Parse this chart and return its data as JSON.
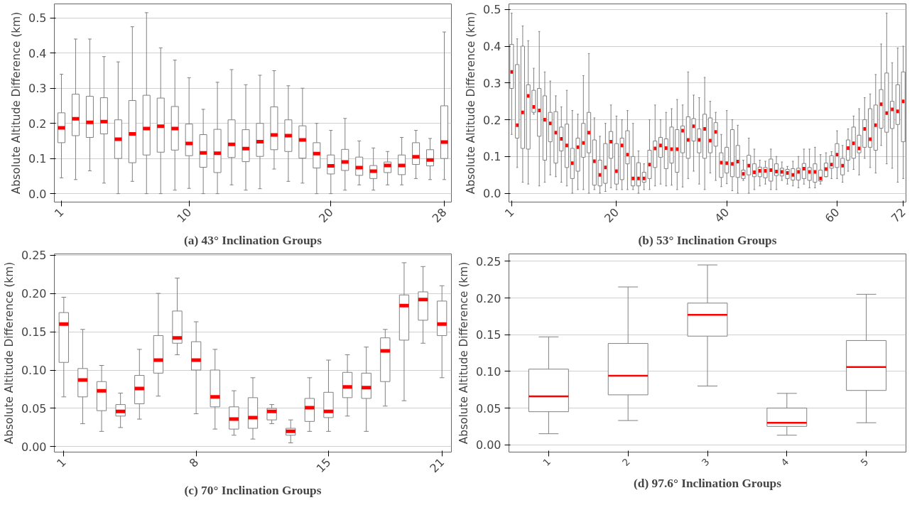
{
  "chart_data": [
    {
      "type": "box",
      "title": "(a) 43° Inclination Groups",
      "ylabel": "Absolute Altitude Difference (km)",
      "grid": "y",
      "categories": [
        "1",
        null,
        null,
        null,
        null,
        null,
        null,
        null,
        null,
        "10",
        null,
        null,
        null,
        null,
        null,
        null,
        null,
        null,
        null,
        "20",
        null,
        null,
        null,
        null,
        null,
        null,
        null,
        "28"
      ],
      "ylim": [
        -0.024,
        0.54
      ],
      "yticks": [
        {
          "value": 0,
          "label": "0.0"
        },
        0.1,
        0.2,
        0.3,
        0.4,
        0.5
      ],
      "series": [
        {
          "color": "#808080",
          "boxes": [
            {
              "low": 0.045,
              "q1": 0.145,
              "median": 0.187,
              "q3": 0.23,
              "high": 0.34
            },
            {
              "low": 0.04,
              "q1": 0.165,
              "median": 0.213,
              "q3": 0.283,
              "high": 0.44
            },
            {
              "low": 0.065,
              "q1": 0.16,
              "median": 0.203,
              "q3": 0.277,
              "high": 0.44
            },
            {
              "low": 0.03,
              "q1": 0.17,
              "median": 0.205,
              "q3": 0.273,
              "high": 0.39
            },
            {
              "low": 0.0,
              "q1": 0.1,
              "median": 0.155,
              "q3": 0.21,
              "high": 0.375
            },
            {
              "low": 0.035,
              "q1": 0.088,
              "median": 0.17,
              "q3": 0.265,
              "high": 0.475
            },
            {
              "low": 0.0,
              "q1": 0.11,
              "median": 0.185,
              "q3": 0.28,
              "high": 0.515
            },
            {
              "low": 0.0,
              "q1": 0.118,
              "median": 0.192,
              "q3": 0.272,
              "high": 0.415
            },
            {
              "low": 0.01,
              "q1": 0.124,
              "median": 0.185,
              "q3": 0.248,
              "high": 0.38
            },
            {
              "low": 0.015,
              "q1": 0.108,
              "median": 0.143,
              "q3": 0.198,
              "high": 0.33
            },
            {
              "low": 0.0,
              "q1": 0.075,
              "median": 0.116,
              "q3": 0.168,
              "high": 0.24
            },
            {
              "low": 0.0,
              "q1": 0.06,
              "median": 0.115,
              "q3": 0.183,
              "high": 0.317
            },
            {
              "low": 0.025,
              "q1": 0.103,
              "median": 0.14,
              "q3": 0.21,
              "high": 0.353
            },
            {
              "low": 0.01,
              "q1": 0.091,
              "median": 0.128,
              "q3": 0.182,
              "high": 0.31
            },
            {
              "low": 0.014,
              "q1": 0.106,
              "median": 0.148,
              "q3": 0.2,
              "high": 0.337
            },
            {
              "low": 0.07,
              "q1": 0.125,
              "median": 0.167,
              "q3": 0.247,
              "high": 0.35
            },
            {
              "low": 0.035,
              "q1": 0.12,
              "median": 0.165,
              "q3": 0.21,
              "high": 0.307
            },
            {
              "low": 0.03,
              "q1": 0.101,
              "median": 0.153,
              "q3": 0.193,
              "high": 0.3
            },
            {
              "low": 0.0,
              "q1": 0.073,
              "median": 0.114,
              "q3": 0.145,
              "high": 0.2
            },
            {
              "low": 0.0,
              "q1": 0.056,
              "median": 0.079,
              "q3": 0.11,
              "high": 0.18
            },
            {
              "low": 0.01,
              "q1": 0.066,
              "median": 0.09,
              "q3": 0.126,
              "high": 0.214
            },
            {
              "low": 0.025,
              "q1": 0.052,
              "median": 0.074,
              "q3": 0.104,
              "high": 0.15
            },
            {
              "low": 0.01,
              "q1": 0.043,
              "median": 0.064,
              "q3": 0.08,
              "high": 0.13
            },
            {
              "low": 0.025,
              "q1": 0.06,
              "median": 0.08,
              "q3": 0.09,
              "high": 0.12
            },
            {
              "low": 0.025,
              "q1": 0.054,
              "median": 0.08,
              "q3": 0.11,
              "high": 0.16
            },
            {
              "low": 0.043,
              "q1": 0.083,
              "median": 0.105,
              "q3": 0.145,
              "high": 0.18
            },
            {
              "low": 0.04,
              "q1": 0.079,
              "median": 0.096,
              "q3": 0.125,
              "high": 0.157
            },
            {
              "low": 0.04,
              "q1": 0.1,
              "median": 0.147,
              "q3": 0.25,
              "high": 0.46
            }
          ]
        }
      ]
    },
    {
      "type": "box",
      "title": "(b) 53° Inclination Groups",
      "ylabel": "Absolute Altitude Difference (km)",
      "grid": "y",
      "categories": [
        "1",
        null,
        null,
        null,
        null,
        null,
        null,
        null,
        null,
        null,
        null,
        null,
        null,
        null,
        null,
        null,
        null,
        null,
        null,
        "20",
        null,
        null,
        null,
        null,
        null,
        null,
        null,
        null,
        null,
        null,
        null,
        null,
        null,
        null,
        null,
        null,
        null,
        null,
        null,
        "40",
        null,
        null,
        null,
        null,
        null,
        null,
        null,
        null,
        null,
        null,
        null,
        null,
        null,
        null,
        null,
        null,
        null,
        null,
        null,
        "60",
        null,
        null,
        null,
        null,
        null,
        null,
        null,
        null,
        null,
        null,
        null,
        "72"
      ],
      "ylim": [
        -0.024,
        0.515
      ],
      "yticks": [
        {
          "value": 0,
          "label": "0.0"
        },
        0.1,
        0.2,
        0.3,
        0.4,
        0.5
      ],
      "series": [
        {
          "color": "#808080",
          "boxes": [
            {
              "low": 0.16,
              "q1": 0.285,
              "median": 0.33,
              "q3": 0.405,
              "high": 0.49
            },
            {
              "low": 0.07,
              "q1": 0.15,
              "median": 0.185,
              "q3": 0.35,
              "high": 0.42
            },
            {
              "low": 0.03,
              "q1": 0.122,
              "median": 0.22,
              "q3": 0.4,
              "high": 0.455
            },
            {
              "low": 0.025,
              "q1": 0.12,
              "median": 0.265,
              "q3": 0.295,
              "high": 0.415
            },
            {
              "low": 0.215,
              "q1": 0.22,
              "median": 0.235,
              "q3": 0.28,
              "high": 0.34
            },
            {
              "low": 0.02,
              "q1": 0.155,
              "median": 0.225,
              "q3": 0.285,
              "high": 0.44
            },
            {
              "low": 0.03,
              "q1": 0.09,
              "median": 0.2,
              "q3": 0.265,
              "high": 0.33
            },
            {
              "low": 0.05,
              "q1": 0.14,
              "median": 0.19,
              "q3": 0.22,
              "high": 0.305
            },
            {
              "low": 0.045,
              "q1": 0.082,
              "median": 0.165,
              "q3": 0.222,
              "high": 0.265
            },
            {
              "low": 0.03,
              "q1": 0.115,
              "median": 0.148,
              "q3": 0.18,
              "high": 0.235
            },
            {
              "low": 0.02,
              "q1": 0.07,
              "median": 0.13,
              "q3": 0.188,
              "high": 0.28
            },
            {
              "low": 0.0,
              "q1": 0.04,
              "median": 0.082,
              "q3": 0.122,
              "high": 0.225
            },
            {
              "low": 0.01,
              "q1": 0.06,
              "median": 0.125,
              "q3": 0.15,
              "high": 0.215
            },
            {
              "low": 0.01,
              "q1": 0.098,
              "median": 0.137,
              "q3": 0.19,
              "high": 0.32
            },
            {
              "low": 0.0,
              "q1": 0.11,
              "median": 0.165,
              "q3": 0.22,
              "high": 0.38
            },
            {
              "low": 0.01,
              "q1": 0.022,
              "median": 0.087,
              "q3": 0.145,
              "high": 0.205
            },
            {
              "low": 0.0,
              "q1": 0.02,
              "median": 0.05,
              "q3": 0.09,
              "high": 0.155
            },
            {
              "low": 0.005,
              "q1": 0.027,
              "median": 0.07,
              "q3": 0.135,
              "high": 0.19
            },
            {
              "low": 0.015,
              "q1": 0.095,
              "median": 0.14,
              "q3": 0.168,
              "high": 0.24
            },
            {
              "low": 0.01,
              "q1": 0.025,
              "median": 0.06,
              "q3": 0.135,
              "high": 0.21
            },
            {
              "low": 0.01,
              "q1": 0.037,
              "median": 0.13,
              "q3": 0.15,
              "high": 0.2
            },
            {
              "low": 0.01,
              "q1": 0.08,
              "median": 0.105,
              "q3": 0.17,
              "high": 0.225
            },
            {
              "low": 0.01,
              "q1": 0.02,
              "median": 0.04,
              "q3": 0.1,
              "high": 0.19
            },
            {
              "low": 0.0,
              "q1": 0.02,
              "median": 0.04,
              "q3": 0.083,
              "high": 0.115
            },
            {
              "low": 0.01,
              "q1": 0.03,
              "median": 0.04,
              "q3": 0.057,
              "high": 0.08
            },
            {
              "low": 0.01,
              "q1": 0.04,
              "median": 0.078,
              "q3": 0.117,
              "high": 0.2
            },
            {
              "low": 0.02,
              "q1": 0.07,
              "median": 0.122,
              "q3": 0.142,
              "high": 0.24
            },
            {
              "low": 0.025,
              "q1": 0.098,
              "median": 0.13,
              "q3": 0.152,
              "high": 0.2
            },
            {
              "low": 0.02,
              "q1": 0.067,
              "median": 0.123,
              "q3": 0.148,
              "high": 0.22
            },
            {
              "low": 0.022,
              "q1": 0.082,
              "median": 0.12,
              "q3": 0.18,
              "high": 0.23
            },
            {
              "low": 0.01,
              "q1": 0.057,
              "median": 0.12,
              "q3": 0.173,
              "high": 0.255
            },
            {
              "low": 0.017,
              "q1": 0.11,
              "median": 0.17,
              "q3": 0.183,
              "high": 0.24
            },
            {
              "low": 0.04,
              "q1": 0.095,
              "median": 0.145,
              "q3": 0.208,
              "high": 0.33
            },
            {
              "low": 0.06,
              "q1": 0.142,
              "median": 0.182,
              "q3": 0.203,
              "high": 0.267
            },
            {
              "low": 0.025,
              "q1": 0.11,
              "median": 0.145,
              "q3": 0.175,
              "high": 0.26
            },
            {
              "low": 0.01,
              "q1": 0.095,
              "median": 0.175,
              "q3": 0.215,
              "high": 0.315
            },
            {
              "low": 0.055,
              "q1": 0.11,
              "median": 0.143,
              "q3": 0.205,
              "high": 0.25
            },
            {
              "low": 0.035,
              "q1": 0.128,
              "median": 0.167,
              "q3": 0.192,
              "high": 0.22
            },
            {
              "low": 0.018,
              "q1": 0.043,
              "median": 0.083,
              "q3": 0.11,
              "high": 0.16
            },
            {
              "low": 0.026,
              "q1": 0.055,
              "median": 0.082,
              "q3": 0.125,
              "high": 0.225
            },
            {
              "low": 0.007,
              "q1": 0.045,
              "median": 0.08,
              "q3": 0.173,
              "high": 0.2
            },
            {
              "low": 0.0,
              "q1": 0.043,
              "median": 0.086,
              "q3": 0.13,
              "high": 0.185
            },
            {
              "low": 0.035,
              "q1": 0.04,
              "median": 0.053,
              "q3": 0.063,
              "high": 0.09
            },
            {
              "low": 0.0,
              "q1": 0.05,
              "median": 0.075,
              "q3": 0.103,
              "high": 0.15
            },
            {
              "low": 0.01,
              "q1": 0.045,
              "median": 0.057,
              "q3": 0.08,
              "high": 0.12
            },
            {
              "low": 0.02,
              "q1": 0.045,
              "median": 0.061,
              "q3": 0.071,
              "high": 0.09
            },
            {
              "low": 0.025,
              "q1": 0.042,
              "median": 0.061,
              "q3": 0.07,
              "high": 0.087
            },
            {
              "low": 0.01,
              "q1": 0.033,
              "median": 0.063,
              "q3": 0.093,
              "high": 0.12
            },
            {
              "low": 0.01,
              "q1": 0.048,
              "median": 0.059,
              "q3": 0.08,
              "high": 0.1
            },
            {
              "low": 0.035,
              "q1": 0.047,
              "median": 0.058,
              "q3": 0.068,
              "high": 0.085
            },
            {
              "low": 0.025,
              "q1": 0.04,
              "median": 0.055,
              "q3": 0.065,
              "high": 0.073
            },
            {
              "low": 0.02,
              "q1": 0.036,
              "median": 0.05,
              "q3": 0.067,
              "high": 0.087
            },
            {
              "low": 0.015,
              "q1": 0.036,
              "median": 0.058,
              "q3": 0.068,
              "high": 0.1
            },
            {
              "low": 0.025,
              "q1": 0.04,
              "median": 0.067,
              "q3": 0.081,
              "high": 0.12
            },
            {
              "low": 0.015,
              "q1": 0.035,
              "median": 0.058,
              "q3": 0.07,
              "high": 0.12
            },
            {
              "low": 0.015,
              "q1": 0.03,
              "median": 0.058,
              "q3": 0.08,
              "high": 0.125
            },
            {
              "low": 0.025,
              "q1": 0.033,
              "median": 0.04,
              "q3": 0.063,
              "high": 0.105
            },
            {
              "low": 0.045,
              "q1": 0.045,
              "median": 0.066,
              "q3": 0.082,
              "high": 0.11
            },
            {
              "low": 0.04,
              "q1": 0.068,
              "median": 0.078,
              "q3": 0.102,
              "high": 0.113
            },
            {
              "low": 0.04,
              "q1": 0.07,
              "median": 0.105,
              "q3": 0.135,
              "high": 0.17
            },
            {
              "low": 0.03,
              "q1": 0.05,
              "median": 0.075,
              "q3": 0.095,
              "high": 0.13
            },
            {
              "low": 0.06,
              "q1": 0.09,
              "median": 0.123,
              "q3": 0.145,
              "high": 0.175
            },
            {
              "low": 0.065,
              "q1": 0.095,
              "median": 0.136,
              "q3": 0.18,
              "high": 0.21
            },
            {
              "low": 0.05,
              "q1": 0.11,
              "median": 0.122,
              "q3": 0.158,
              "high": 0.23
            },
            {
              "low": 0.095,
              "q1": 0.125,
              "median": 0.175,
              "q3": 0.2,
              "high": 0.26
            },
            {
              "low": 0.07,
              "q1": 0.125,
              "median": 0.147,
              "q3": 0.23,
              "high": 0.27
            },
            {
              "low": 0.055,
              "q1": 0.117,
              "median": 0.185,
              "q3": 0.24,
              "high": 0.323
            },
            {
              "low": 0.13,
              "q1": 0.177,
              "median": 0.242,
              "q3": 0.282,
              "high": 0.406
            },
            {
              "low": 0.08,
              "q1": 0.166,
              "median": 0.218,
              "q3": 0.327,
              "high": 0.49
            },
            {
              "low": 0.068,
              "q1": 0.176,
              "median": 0.228,
              "q3": 0.25,
              "high": 0.355
            },
            {
              "low": 0.03,
              "q1": 0.187,
              "median": 0.223,
              "q3": 0.295,
              "high": 0.395
            },
            {
              "low": 0.04,
              "q1": 0.14,
              "median": 0.25,
              "q3": 0.33,
              "high": 0.4
            }
          ]
        }
      ]
    },
    {
      "type": "box",
      "title": "(c) 70° Inclination Groups",
      "ylabel": "Absolute Altitude Difference (km)",
      "grid": "y",
      "categories": [
        "1",
        null,
        null,
        null,
        null,
        null,
        null,
        "8",
        null,
        null,
        null,
        null,
        null,
        null,
        "15",
        null,
        null,
        null,
        null,
        null,
        "21"
      ],
      "ylim": [
        -0.007,
        0.2515
      ],
      "yticks": [
        {
          "value": 0,
          "label": "0.00"
        },
        0.05,
        {
          "value": 0.1,
          "label": "0.10"
        },
        0.15,
        {
          "value": 0.2,
          "label": "0.20"
        },
        0.25
      ],
      "series": [
        {
          "color": "#808080",
          "boxes": [
            {
              "low": 0.065,
              "q1": 0.11,
              "median": 0.16,
              "q3": 0.175,
              "high": 0.195
            },
            {
              "low": 0.03,
              "q1": 0.065,
              "median": 0.087,
              "q3": 0.102,
              "high": 0.153
            },
            {
              "low": 0.02,
              "q1": 0.047,
              "median": 0.073,
              "q3": 0.085,
              "high": 0.106
            },
            {
              "low": 0.025,
              "q1": 0.04,
              "median": 0.046,
              "q3": 0.055,
              "high": 0.07
            },
            {
              "low": 0.036,
              "q1": 0.056,
              "median": 0.076,
              "q3": 0.093,
              "high": 0.127
            },
            {
              "low": 0.066,
              "q1": 0.096,
              "median": 0.113,
              "q3": 0.145,
              "high": 0.2
            },
            {
              "low": 0.12,
              "q1": 0.135,
              "median": 0.142,
              "q3": 0.177,
              "high": 0.22
            },
            {
              "low": 0.043,
              "q1": 0.1,
              "median": 0.113,
              "q3": 0.137,
              "high": 0.163
            },
            {
              "low": 0.023,
              "q1": 0.052,
              "median": 0.065,
              "q3": 0.1,
              "high": 0.127
            },
            {
              "low": 0.015,
              "q1": 0.023,
              "median": 0.036,
              "q3": 0.052,
              "high": 0.073
            },
            {
              "low": 0.01,
              "q1": 0.024,
              "median": 0.038,
              "q3": 0.064,
              "high": 0.09
            },
            {
              "low": 0.03,
              "q1": 0.035,
              "median": 0.046,
              "q3": 0.05,
              "high": 0.055
            },
            {
              "low": 0.005,
              "q1": 0.015,
              "median": 0.02,
              "q3": 0.024,
              "high": 0.035
            },
            {
              "low": 0.02,
              "q1": 0.033,
              "median": 0.051,
              "q3": 0.063,
              "high": 0.09
            },
            {
              "low": 0.02,
              "q1": 0.038,
              "median": 0.046,
              "q3": 0.071,
              "high": 0.113
            },
            {
              "low": 0.04,
              "q1": 0.064,
              "median": 0.078,
              "q3": 0.097,
              "high": 0.12
            },
            {
              "low": 0.02,
              "q1": 0.063,
              "median": 0.077,
              "q3": 0.096,
              "high": 0.13
            },
            {
              "low": 0.053,
              "q1": 0.085,
              "median": 0.125,
              "q3": 0.142,
              "high": 0.153
            },
            {
              "low": 0.06,
              "q1": 0.139,
              "median": 0.184,
              "q3": 0.198,
              "high": 0.24
            },
            {
              "low": 0.135,
              "q1": 0.165,
              "median": 0.192,
              "q3": 0.202,
              "high": 0.235
            },
            {
              "low": 0.09,
              "q1": 0.145,
              "median": 0.16,
              "q3": 0.19,
              "high": 0.21
            }
          ]
        }
      ]
    },
    {
      "type": "box",
      "title": "(d) 97.6° Inclination Groups",
      "ylabel": "Absolute Altitude Difference (km)",
      "grid": "y",
      "categories": [
        "1",
        "2",
        "3",
        "4",
        "5"
      ],
      "ylim": [
        -0.01,
        0.26
      ],
      "yticks": [
        {
          "value": 0,
          "label": "0.00"
        },
        0.05,
        {
          "value": 0.1,
          "label": "0.10"
        },
        0.15,
        {
          "value": 0.2,
          "label": "0.20"
        },
        0.25
      ],
      "series": [
        {
          "color": "#808080",
          "boxes": [
            {
              "low": 0.015,
              "q1": 0.045,
              "median": 0.066,
              "q3": 0.103,
              "high": 0.147
            },
            {
              "low": 0.033,
              "q1": 0.068,
              "median": 0.094,
              "q3": 0.138,
              "high": 0.215
            },
            {
              "low": 0.08,
              "q1": 0.148,
              "median": 0.177,
              "q3": 0.193,
              "high": 0.245
            },
            {
              "low": 0.013,
              "q1": 0.025,
              "median": 0.03,
              "q3": 0.05,
              "high": 0.07
            },
            {
              "low": 0.03,
              "q1": 0.074,
              "median": 0.106,
              "q3": 0.142,
              "high": 0.205
            }
          ]
        }
      ]
    }
  ]
}
